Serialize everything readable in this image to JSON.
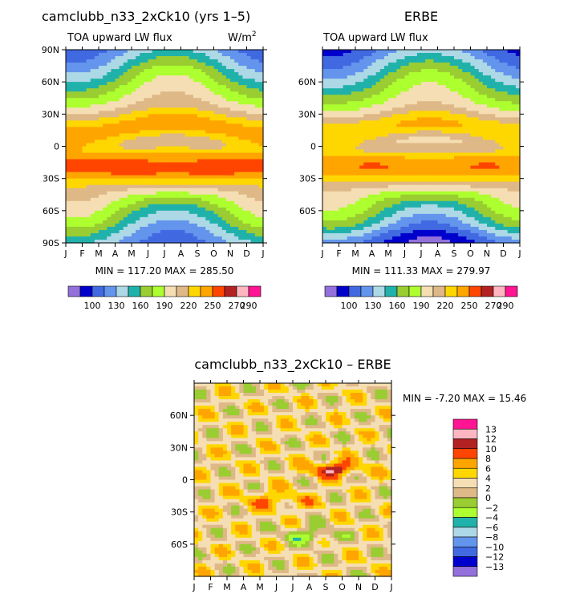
{
  "colors": {
    "abs_palette": [
      "#9370db",
      "#0000cd",
      "#4169e1",
      "#6495ed",
      "#add8e6",
      "#20b2aa",
      "#9acd32",
      "#adff2f",
      "#f5deb3",
      "#deb887",
      "#ffd700",
      "#ffa500",
      "#ff4500",
      "#b22222",
      "#ffb6c1",
      "#ff1493"
    ],
    "diff_palette": [
      "#9370db",
      "#0000cd",
      "#4169e1",
      "#6495ed",
      "#add8e6",
      "#20b2aa",
      "#adff2f",
      "#9acd32",
      "#deb887",
      "#f5deb3",
      "#ffd700",
      "#ffa500",
      "#ff4500",
      "#b22222",
      "#ffb6c1",
      "#ff1493"
    ]
  },
  "chart_data": [
    {
      "type": "heatmap",
      "title": "camclubb_n33_2xCk10 (yrs 1–5)",
      "subtitle": "TOA upward LW flux",
      "units_base": "W/m",
      "units_exp": "2",
      "x": [
        "J",
        "F",
        "M",
        "A",
        "M",
        "J",
        "J",
        "A",
        "S",
        "O",
        "N",
        "D",
        "J"
      ],
      "y_ticks": [
        "90N",
        "60N",
        "30N",
        "0",
        "30S",
        "60S",
        "90S"
      ],
      "xlim": [
        0,
        12
      ],
      "ylim": [
        -90,
        90
      ],
      "min_max_text": "MIN = 117.20 MAX = 285.50",
      "field": "model",
      "min": 117.2,
      "max": 285.5
    },
    {
      "type": "heatmap",
      "title": "ERBE",
      "subtitle": "TOA upward LW flux",
      "x": [
        "J",
        "F",
        "M",
        "A",
        "M",
        "J",
        "J",
        "A",
        "S",
        "O",
        "N",
        "D",
        "J"
      ],
      "y_ticks": [
        "60N",
        "30N",
        "0",
        "30S",
        "60S"
      ],
      "xlim": [
        0,
        12
      ],
      "ylim": [
        -90,
        90
      ],
      "min_max_text": "MIN = 111.33 MAX = 279.97",
      "field": "obs",
      "min": 111.33,
      "max": 279.97
    },
    {
      "type": "heatmap",
      "title": "camclubb_n33_2xCk10 – ERBE",
      "x": [
        "J",
        "F",
        "M",
        "A",
        "M",
        "J",
        "J",
        "A",
        "S",
        "O",
        "N",
        "D",
        "J"
      ],
      "y_ticks": [
        "60N",
        "30N",
        "0",
        "30S",
        "60S"
      ],
      "xlim": [
        0,
        12
      ],
      "ylim": [
        -90,
        90
      ],
      "min_max_text": "MIN =   -7.20 MAX =  15.46",
      "field": "diff",
      "min": -7.2,
      "max": 15.46
    }
  ],
  "colorbars": {
    "abs": {
      "levels": [
        100,
        110,
        120,
        130,
        140,
        150,
        160,
        170,
        180,
        190,
        200,
        210,
        220,
        230,
        240,
        250,
        260,
        270,
        280,
        290
      ],
      "tick_labels": [
        "100",
        "130",
        "160",
        "190",
        "220",
        "250",
        "270",
        "290"
      ]
    },
    "diff": {
      "tick_labels": [
        "13",
        "12",
        "10",
        "8",
        "6",
        "4",
        "2",
        "0",
        "−2",
        "−4",
        "−6",
        "−8",
        "−10",
        "−12",
        "−13"
      ]
    }
  }
}
